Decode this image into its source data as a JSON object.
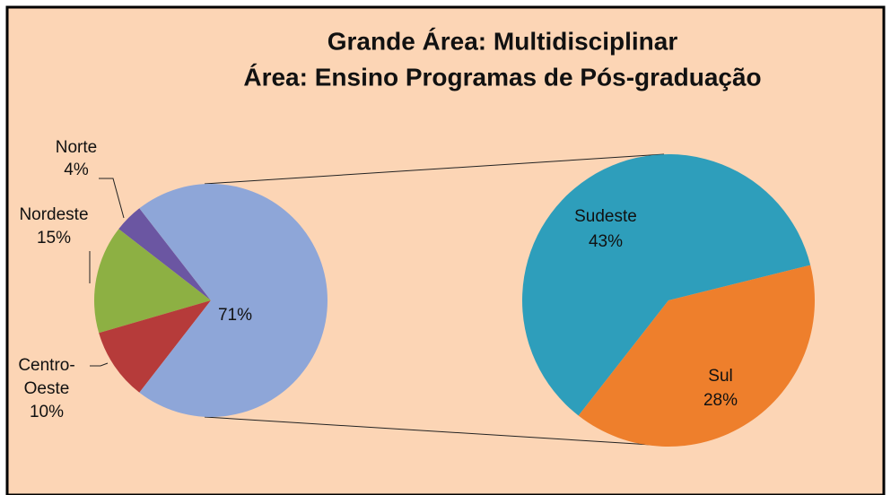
{
  "chart_data": {
    "type": "pie-of-pie",
    "title": "Grande Área: Multidisciplinar",
    "subtitle": "Área: Ensino Programas de Pós-graduação",
    "main": {
      "categories": [
        "Norte",
        "Nordeste",
        "Centro-Oeste",
        null
      ],
      "values": [
        4,
        15,
        10,
        71
      ],
      "value_labels": [
        "4%",
        "15%",
        "10%",
        "71%"
      ],
      "colors": [
        "#6b56a2",
        "#8db043",
        "#b63b3a",
        "#8ea6d8"
      ]
    },
    "secondary": {
      "categories": [
        "Sudeste",
        "Sul"
      ],
      "values": [
        43,
        28
      ],
      "value_labels": [
        "43%",
        "28%"
      ],
      "colors": [
        "#2e9ebb",
        "#ee7f2c"
      ]
    }
  }
}
